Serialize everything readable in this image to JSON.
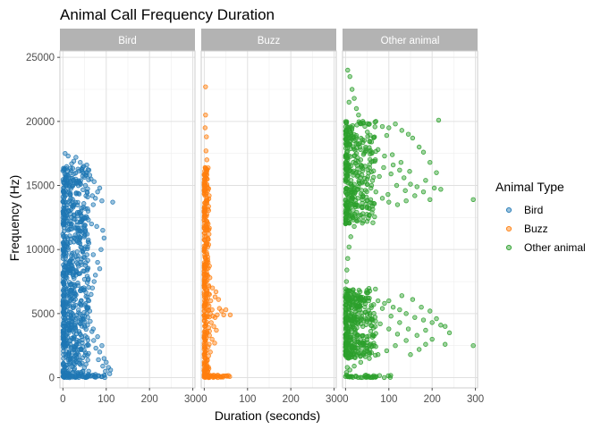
{
  "chart_data": {
    "type": "scatter",
    "title": "Animal Call Frequency Duration",
    "xlabel": "Duration (seconds)",
    "ylabel": "Frequency (Hz)",
    "xlim": [
      -7,
      305
    ],
    "ylim": [
      -800,
      25500
    ],
    "x_ticks": [
      0,
      100,
      200,
      300
    ],
    "y_ticks": [
      0,
      5000,
      10000,
      15000,
      20000,
      25000
    ],
    "grid": true,
    "legend": {
      "title": "Animal Type",
      "position": "right"
    },
    "facets": [
      {
        "name": "Bird",
        "color": "#1F77B4",
        "points": [
          [
            5,
            17500
          ],
          [
            12,
            17300
          ],
          [
            30,
            17200
          ],
          [
            25,
            16900
          ],
          [
            40,
            16800
          ],
          [
            48,
            16500
          ],
          [
            55,
            16600
          ],
          [
            20,
            16700
          ],
          [
            60,
            16200
          ],
          [
            65,
            15500
          ],
          [
            72,
            15300
          ],
          [
            85,
            14800
          ],
          [
            80,
            14500
          ],
          [
            75,
            14000
          ],
          [
            90,
            13800
          ],
          [
            70,
            13500
          ],
          [
            115,
            13700
          ],
          [
            62,
            15800
          ],
          [
            68,
            14200
          ],
          [
            58,
            13000
          ],
          [
            50,
            12500
          ],
          [
            66,
            12000
          ],
          [
            78,
            11800
          ],
          [
            92,
            11500
          ],
          [
            95,
            10900
          ],
          [
            88,
            10000
          ],
          [
            60,
            10500
          ],
          [
            70,
            9600
          ],
          [
            80,
            9000
          ],
          [
            85,
            8500
          ],
          [
            75,
            8000
          ],
          [
            72,
            7500
          ],
          [
            68,
            7000
          ],
          [
            65,
            6500
          ],
          [
            60,
            6000
          ],
          [
            55,
            5500
          ],
          [
            62,
            5200
          ],
          [
            50,
            4800
          ],
          [
            45,
            4500
          ],
          [
            40,
            4200
          ],
          [
            70,
            3800
          ],
          [
            80,
            3200
          ],
          [
            90,
            2500
          ],
          [
            85,
            2000
          ],
          [
            95,
            1500
          ],
          [
            100,
            1200
          ],
          [
            105,
            800
          ],
          [
            110,
            600
          ],
          [
            108,
            300
          ],
          [
            98,
            500
          ],
          [
            92,
            900
          ],
          [
            82,
            1400
          ],
          [
            76,
            2300
          ],
          [
            42,
            13000
          ],
          [
            38,
            11000
          ],
          [
            35,
            9500
          ],
          [
            30,
            8000
          ],
          [
            28,
            7200
          ],
          [
            25,
            6000
          ],
          [
            22,
            5000
          ],
          [
            15,
            15000
          ],
          [
            18,
            14000
          ],
          [
            10,
            12500
          ],
          [
            8,
            11000
          ],
          [
            12,
            10000
          ],
          [
            6,
            9000
          ],
          [
            9,
            8200
          ],
          [
            4,
            7600
          ],
          [
            16,
            6800
          ],
          [
            3,
            6200
          ],
          [
            20,
            12000
          ],
          [
            26,
            13500
          ],
          [
            32,
            15200
          ],
          [
            44,
            16100
          ],
          [
            52,
            15000
          ],
          [
            56,
            11200
          ],
          [
            46,
            9800
          ],
          [
            36,
            8700
          ],
          [
            24,
            7900
          ],
          [
            14,
            5600
          ],
          [
            11,
            4100
          ],
          [
            7,
            3300
          ],
          [
            5,
            2600
          ],
          [
            13,
            1900
          ],
          [
            19,
            1200
          ],
          [
            27,
            700
          ],
          [
            35,
            400
          ],
          [
            45,
            200
          ],
          [
            55,
            100
          ],
          [
            65,
            150
          ],
          [
            75,
            250
          ],
          [
            2,
            16200
          ],
          [
            1,
            14800
          ],
          [
            3,
            13200
          ],
          [
            2,
            10400
          ],
          [
            1,
            8800
          ],
          [
            2,
            6600
          ],
          [
            1,
            4700
          ],
          [
            2,
            3000
          ],
          [
            1,
            1500
          ],
          [
            3,
            600
          ],
          [
            4,
            200
          ],
          [
            0,
            100
          ],
          [
            33,
            12800
          ],
          [
            41,
            10200
          ],
          [
            49,
            8300
          ],
          [
            57,
            6300
          ],
          [
            63,
            4400
          ],
          [
            67,
            3600
          ],
          [
            71,
            2900
          ]
        ],
        "zero_band": [
          0,
          110
        ]
      },
      {
        "name": "Buzz",
        "color": "#FF7F0E",
        "points": [
          [
            3,
            22700
          ],
          [
            5,
            18800
          ],
          [
            4,
            17700
          ],
          [
            6,
            17000
          ],
          [
            2,
            16400
          ],
          [
            5,
            16000
          ],
          [
            7,
            15500
          ],
          [
            3,
            15000
          ],
          [
            8,
            14800
          ],
          [
            4,
            14300
          ],
          [
            6,
            13800
          ],
          [
            2,
            13200
          ],
          [
            5,
            12600
          ],
          [
            7,
            12100
          ],
          [
            3,
            11500
          ],
          [
            4,
            11000
          ],
          [
            6,
            10500
          ],
          [
            8,
            10200
          ],
          [
            5,
            9800
          ],
          [
            3,
            9300
          ],
          [
            9,
            9000
          ],
          [
            6,
            8500
          ],
          [
            4,
            8000
          ],
          [
            7,
            7600
          ],
          [
            10,
            7200
          ],
          [
            5,
            6800
          ],
          [
            12,
            6500
          ],
          [
            8,
            6200
          ],
          [
            15,
            6000
          ],
          [
            11,
            5600
          ],
          [
            18,
            5300
          ],
          [
            14,
            5000
          ],
          [
            20,
            4800
          ],
          [
            25,
            4700
          ],
          [
            30,
            4900
          ],
          [
            35,
            5400
          ],
          [
            40,
            5200
          ],
          [
            45,
            4900
          ],
          [
            50,
            5300
          ],
          [
            60,
            4900
          ],
          [
            16,
            4300
          ],
          [
            22,
            4000
          ],
          [
            28,
            3700
          ],
          [
            12,
            3300
          ],
          [
            18,
            3000
          ],
          [
            24,
            2700
          ],
          [
            9,
            2400
          ],
          [
            14,
            2000
          ],
          [
            10,
            1700
          ],
          [
            7,
            1400
          ],
          [
            5,
            1100
          ],
          [
            4,
            800
          ],
          [
            3,
            500
          ],
          [
            2,
            300
          ],
          [
            6,
            200
          ],
          [
            25,
            6300
          ],
          [
            33,
            6100
          ],
          [
            19,
            7000
          ],
          [
            27,
            6700
          ],
          [
            13,
            7800
          ],
          [
            2,
            19500
          ],
          [
            3,
            20500
          ],
          [
            6,
            14000
          ],
          [
            9,
            12000
          ],
          [
            11,
            11200
          ],
          [
            8,
            10800
          ],
          [
            4,
            4200
          ],
          [
            6,
            3600
          ],
          [
            3,
            2900
          ],
          [
            2,
            2300
          ]
        ],
        "zero_band": [
          0,
          60
        ]
      },
      {
        "name": "Other animal",
        "color": "#2CA02C",
        "points": [
          [
            5,
            24000
          ],
          [
            10,
            23500
          ],
          [
            15,
            22500
          ],
          [
            20,
            21800
          ],
          [
            8,
            21500
          ],
          [
            25,
            21000
          ],
          [
            30,
            20500
          ],
          [
            40,
            20000
          ],
          [
            55,
            19800
          ],
          [
            70,
            20000
          ],
          [
            85,
            19600
          ],
          [
            100,
            19500
          ],
          [
            115,
            19800
          ],
          [
            130,
            19300
          ],
          [
            145,
            19000
          ],
          [
            155,
            18700
          ],
          [
            170,
            18000
          ],
          [
            180,
            17600
          ],
          [
            195,
            16800
          ],
          [
            210,
            16000
          ],
          [
            215,
            20100
          ],
          [
            205,
            14800
          ],
          [
            180,
            14500
          ],
          [
            160,
            14200
          ],
          [
            140,
            13800
          ],
          [
            120,
            13500
          ],
          [
            100,
            13700
          ],
          [
            85,
            14000
          ],
          [
            70,
            14500
          ],
          [
            60,
            15000
          ],
          [
            50,
            15500
          ],
          [
            45,
            16500
          ],
          [
            35,
            17000
          ],
          [
            25,
            17500
          ],
          [
            20,
            18500
          ],
          [
            15,
            19500
          ],
          [
            30,
            18200
          ],
          [
            90,
            17300
          ],
          [
            110,
            16600
          ],
          [
            125,
            16200
          ],
          [
            135,
            15600
          ],
          [
            150,
            15100
          ],
          [
            165,
            14900
          ],
          [
            185,
            15400
          ],
          [
            195,
            13900
          ],
          [
            220,
            14700
          ],
          [
            295,
            13900
          ],
          [
            60,
            18400
          ],
          [
            75,
            17800
          ],
          [
            95,
            18900
          ],
          [
            105,
            15900
          ],
          [
            55,
            13200
          ],
          [
            40,
            12800
          ],
          [
            30,
            12300
          ],
          [
            20,
            11800
          ],
          [
            12,
            11000
          ],
          [
            8,
            10200
          ],
          [
            5,
            9300
          ],
          [
            3,
            8400
          ],
          [
            2,
            7500
          ],
          [
            10,
            6800
          ],
          [
            20,
            6500
          ],
          [
            35,
            6300
          ],
          [
            55,
            6200
          ],
          [
            75,
            6000
          ],
          [
            90,
            5800
          ],
          [
            110,
            5500
          ],
          [
            125,
            5300
          ],
          [
            140,
            5000
          ],
          [
            160,
            4700
          ],
          [
            180,
            4500
          ],
          [
            200,
            4300
          ],
          [
            220,
            4100
          ],
          [
            240,
            3500
          ],
          [
            200,
            3000
          ],
          [
            185,
            2600
          ],
          [
            170,
            2200
          ],
          [
            150,
            1800
          ],
          [
            140,
            2900
          ],
          [
            120,
            3400
          ],
          [
            100,
            3800
          ],
          [
            80,
            4200
          ],
          [
            60,
            4600
          ],
          [
            45,
            5100
          ],
          [
            30,
            5600
          ],
          [
            100,
            6000
          ],
          [
            130,
            6400
          ],
          [
            155,
            6100
          ],
          [
            175,
            5500
          ],
          [
            195,
            5200
          ],
          [
            210,
            4600
          ],
          [
            230,
            4000
          ],
          [
            185,
            3700
          ],
          [
            165,
            3300
          ],
          [
            145,
            3800
          ],
          [
            125,
            4300
          ],
          [
            105,
            4800
          ],
          [
            85,
            5400
          ],
          [
            65,
            5700
          ],
          [
            50,
            6600
          ],
          [
            295,
            2500
          ],
          [
            230,
            2600
          ],
          [
            115,
            2500
          ],
          [
            95,
            2100
          ],
          [
            75,
            1800
          ],
          [
            55,
            1500
          ],
          [
            35,
            1200
          ],
          [
            20,
            900
          ],
          [
            10,
            600
          ],
          [
            40,
            4000
          ],
          [
            25,
            3200
          ],
          [
            15,
            2400
          ],
          [
            8,
            1600
          ],
          [
            4,
            800
          ],
          [
            2,
            400
          ],
          [
            12,
            14500
          ],
          [
            18,
            15800
          ],
          [
            28,
            16300
          ],
          [
            38,
            15200
          ],
          [
            48,
            14100
          ],
          [
            58,
            13900
          ],
          [
            68,
            16900
          ],
          [
            78,
            15700
          ],
          [
            88,
            16400
          ],
          [
            98,
            14300
          ],
          [
            108,
            17400
          ],
          [
            118,
            15000
          ],
          [
            128,
            16800
          ],
          [
            138,
            14600
          ],
          [
            148,
            16100
          ]
        ],
        "zero_band": [
          0,
          110
        ]
      }
    ]
  }
}
